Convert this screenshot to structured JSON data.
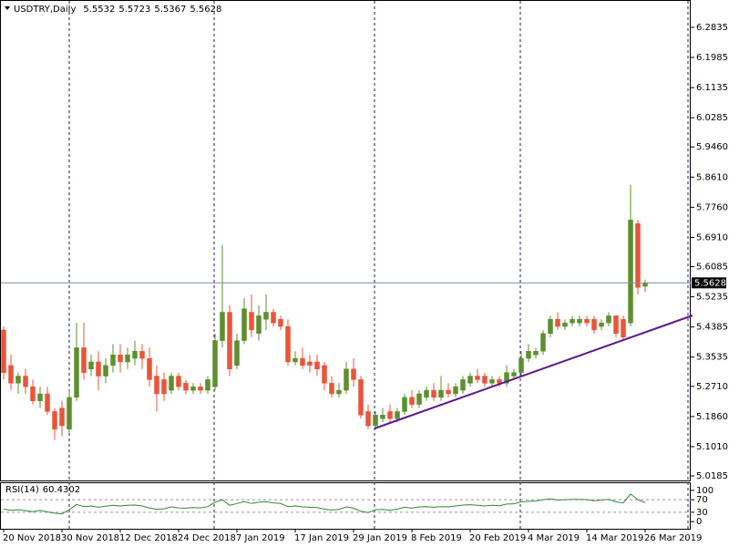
{
  "chart_data": [
    {
      "type": "candlestick",
      "symbol": "USDTRY,Daily",
      "categories": [
        "20 Nov 2018",
        null,
        null,
        null,
        null,
        null,
        null,
        null,
        "30 Nov 2018",
        null,
        null,
        null,
        null,
        null,
        null,
        null,
        "12 Dec 2018",
        null,
        null,
        null,
        null,
        null,
        null,
        null,
        "24 Dec 2018",
        null,
        null,
        null,
        null,
        null,
        null,
        null,
        "7 Jan 2019",
        null,
        null,
        null,
        null,
        null,
        null,
        null,
        "17 Jan 2019",
        null,
        null,
        null,
        null,
        null,
        null,
        null,
        "29 Jan 2019",
        null,
        null,
        null,
        null,
        null,
        null,
        null,
        "8 Feb 2019",
        null,
        null,
        null,
        null,
        null,
        null,
        null,
        "20 Feb 2019",
        null,
        null,
        null,
        null,
        null,
        null,
        null,
        "4 Mar 2019",
        null,
        null,
        null,
        null,
        null,
        null,
        null,
        "14 Mar 2019",
        null,
        null,
        null,
        null,
        null,
        null,
        null,
        "26 Mar 2019"
      ],
      "open": [
        5.43,
        5.33,
        5.28,
        5.3,
        5.27,
        5.23,
        5.25,
        5.2,
        5.21,
        5.15,
        5.24,
        5.38,
        5.32,
        5.34,
        5.3,
        5.33,
        5.36,
        5.34,
        5.35,
        5.37,
        5.35,
        5.3,
        5.29,
        5.26,
        5.3,
        5.28,
        5.26,
        5.27,
        5.26,
        5.27,
        5.4,
        5.48,
        5.33,
        5.4,
        5.48,
        5.42,
        5.46,
        5.48,
        5.46,
        5.44,
        5.34,
        5.35,
        5.34,
        5.34,
        5.33,
        5.28,
        5.25,
        5.26,
        5.32,
        5.29,
        5.2,
        5.16,
        5.18,
        5.2,
        5.18,
        5.2,
        5.24,
        5.22,
        5.24,
        5.26,
        5.24,
        5.26,
        5.25,
        5.26,
        5.28,
        5.3,
        5.3,
        5.28,
        5.29,
        5.28,
        5.3,
        5.31,
        5.35,
        5.36,
        5.37,
        5.42,
        5.46,
        5.44,
        5.45,
        5.45,
        5.46,
        5.46,
        5.44,
        5.45,
        5.47,
        5.46,
        5.45,
        5.73,
        5.5532
      ],
      "high": [
        5.44,
        5.36,
        5.31,
        5.32,
        5.29,
        5.27,
        5.27,
        5.21,
        5.23,
        5.26,
        5.45,
        5.45,
        5.36,
        5.37,
        5.35,
        5.39,
        5.39,
        5.38,
        5.4,
        5.39,
        5.38,
        5.33,
        5.31,
        5.31,
        5.31,
        5.29,
        5.28,
        5.28,
        5.3,
        5.42,
        5.67,
        5.5,
        5.42,
        5.52,
        5.53,
        5.5,
        5.53,
        5.49,
        5.47,
        5.46,
        5.37,
        5.38,
        5.36,
        5.36,
        5.34,
        5.3,
        5.28,
        5.34,
        5.35,
        5.3,
        5.22,
        5.2,
        5.21,
        5.22,
        5.21,
        5.25,
        5.26,
        5.26,
        5.27,
        5.28,
        5.3,
        5.28,
        5.28,
        5.3,
        5.31,
        5.32,
        5.31,
        5.3,
        5.3,
        5.33,
        5.32,
        5.37,
        5.39,
        5.38,
        5.43,
        5.47,
        5.48,
        5.46,
        5.47,
        5.47,
        5.47,
        5.47,
        5.46,
        5.48,
        5.47,
        5.47,
        5.84,
        5.74,
        5.5723
      ],
      "low": [
        5.29,
        5.26,
        5.25,
        5.25,
        5.22,
        5.21,
        5.19,
        5.12,
        5.13,
        5.14,
        5.23,
        5.29,
        5.3,
        5.26,
        5.28,
        5.31,
        5.31,
        5.32,
        5.33,
        5.32,
        5.27,
        5.2,
        5.23,
        5.25,
        5.26,
        5.25,
        5.25,
        5.25,
        5.25,
        5.26,
        5.38,
        5.3,
        5.32,
        5.39,
        5.41,
        5.4,
        5.43,
        5.44,
        5.43,
        5.33,
        5.33,
        5.32,
        5.31,
        5.3,
        5.26,
        5.24,
        5.24,
        5.25,
        5.27,
        5.18,
        5.15,
        5.15,
        5.17,
        5.17,
        5.17,
        5.19,
        5.21,
        5.21,
        5.23,
        5.23,
        5.23,
        5.24,
        5.24,
        5.25,
        5.27,
        5.28,
        5.27,
        5.27,
        5.27,
        5.27,
        5.29,
        5.3,
        5.34,
        5.35,
        5.36,
        5.41,
        5.43,
        5.43,
        5.44,
        5.44,
        5.44,
        5.42,
        5.43,
        5.44,
        5.41,
        5.4,
        5.44,
        5.53,
        5.5367
      ],
      "close": [
        5.31,
        5.28,
        5.3,
        5.27,
        5.23,
        5.25,
        5.2,
        5.15,
        5.16,
        5.24,
        5.38,
        5.31,
        5.34,
        5.3,
        5.33,
        5.36,
        5.34,
        5.36,
        5.37,
        5.35,
        5.29,
        5.25,
        5.25,
        5.3,
        5.27,
        5.26,
        5.27,
        5.26,
        5.29,
        5.4,
        5.48,
        5.32,
        5.4,
        5.49,
        5.43,
        5.47,
        5.48,
        5.45,
        5.44,
        5.34,
        5.35,
        5.33,
        5.33,
        5.32,
        5.28,
        5.25,
        5.26,
        5.32,
        5.29,
        5.19,
        5.16,
        5.19,
        5.19,
        5.18,
        5.2,
        5.24,
        5.22,
        5.25,
        5.26,
        5.24,
        5.26,
        5.25,
        5.27,
        5.29,
        5.3,
        5.29,
        5.28,
        5.29,
        5.28,
        5.31,
        5.31,
        5.35,
        5.37,
        5.37,
        5.42,
        5.46,
        5.44,
        5.45,
        5.46,
        5.46,
        5.45,
        5.43,
        5.45,
        5.47,
        5.42,
        5.41,
        5.74,
        5.55,
        5.5628
      ],
      "up_color": "#5d8f2e",
      "down_color": "#e9553a",
      "ylim": [
        5.0057,
        6.3579
      ],
      "yticks": [
        6.2835,
        6.1985,
        6.1135,
        6.0285,
        {
          "value": 5.946,
          "label": "5.9460"
        },
        {
          "value": 5.861,
          "label": "5.8610"
        },
        {
          "value": 5.776,
          "label": "5.7760"
        },
        {
          "value": 5.691,
          "label": "5.6910"
        },
        5.6085,
        5.5235,
        5.4385,
        5.3535,
        {
          "value": 5.271,
          "label": "5.2710"
        },
        {
          "value": 5.186,
          "label": "5.1860"
        },
        {
          "value": 5.101,
          "label": "5.1010"
        },
        5.0185
      ]
    },
    {
      "type": "line",
      "name": "RSI(14)",
      "color": "#2e8b2e",
      "values": [
        40,
        36,
        38,
        35,
        32,
        36,
        31,
        27,
        25,
        38,
        55,
        48,
        50,
        46,
        49,
        52,
        50,
        52,
        53,
        50,
        44,
        39,
        41,
        47,
        44,
        43,
        45,
        44,
        48,
        62,
        70,
        52,
        58,
        64,
        58,
        62,
        64,
        60,
        58,
        48,
        50,
        47,
        46,
        45,
        40,
        37,
        39,
        47,
        43,
        33,
        29,
        38,
        39,
        36,
        40,
        46,
        43,
        47,
        48,
        46,
        48,
        47,
        50,
        53,
        54,
        52,
        50,
        52,
        51,
        56,
        57,
        63,
        65,
        66,
        70,
        73,
        69,
        70,
        71,
        71,
        70,
        67,
        69,
        71,
        63,
        60,
        88,
        70,
        60.4302
      ],
      "ylim": [
        -22.9,
        122.9
      ],
      "yticks": [
        0,
        30,
        70,
        100
      ],
      "level_lines": [
        30,
        70
      ]
    }
  ]
}
